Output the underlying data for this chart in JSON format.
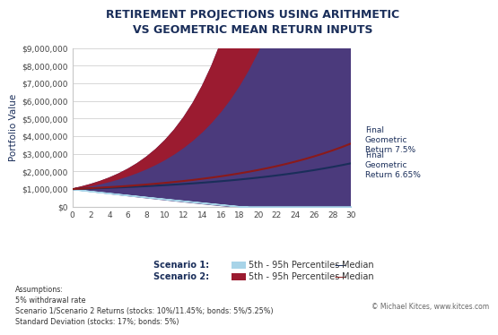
{
  "title": "RETIREMENT PROJECTIONS USING ARITHMETIC\nVS GEOMETRIC MEAN RETURN INPUTS",
  "title_color": "#1a2e5a",
  "ylabel": "Portfolio Value",
  "xlim": [
    0,
    30
  ],
  "ylim": [
    0,
    9000000
  ],
  "yticks": [
    0,
    1000000,
    2000000,
    3000000,
    4000000,
    5000000,
    6000000,
    7000000,
    8000000,
    9000000
  ],
  "xticks": [
    0,
    2,
    4,
    6,
    8,
    10,
    12,
    14,
    16,
    18,
    20,
    22,
    24,
    26,
    28,
    30
  ],
  "initial_value": 1000000,
  "withdrawal_rate": 0.05,
  "s1_fill_color": "#a8d4e8",
  "s1_median_color": "#1a2e5a",
  "s2_fill_color": "#9b1b30",
  "s2_median_color": "#8b1a1a",
  "purple_fill_color": "#4b3a7c",
  "background_color": "#ffffff",
  "grid_color": "#c8c8c8",
  "annotation1_text": "Final\nGeometric\nReturn 7.5%",
  "annotation2_text": "Final\nGeometric\nReturn 6.65%",
  "assumptions_text": "Assumptions:\n5% withdrawal rate\nScenario 1/Scenario 2 Returns (stocks: 10%/11.45%; bonds: 5%/5.25%)\nStandard Deviation (stocks: 17%; bonds: 5%)",
  "copyright_text": "© Michael Kitces, www.kitces.com",
  "s1_p5_rate": -0.008,
  "s1_p95_rate": 0.138,
  "s1_median_rate": 0.0665,
  "s2_p5_rate": -0.015,
  "s2_p95_rate": 0.172,
  "s2_median_rate": 0.075
}
